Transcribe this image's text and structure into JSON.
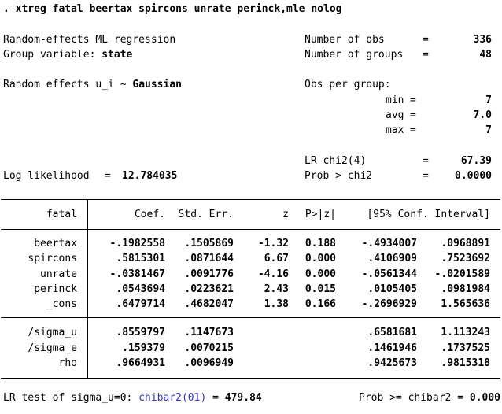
{
  "colors": {
    "link_blue": "#3434cd",
    "text": "#000000",
    "background": "#ffffff"
  },
  "command": {
    "line": ". xtreg fatal beertax spircons unrate perinck,mle nolog"
  },
  "header": {
    "left": {
      "model": "Random-effects ML regression",
      "group_label": "Group variable: ",
      "group_value": "state",
      "re_label": "Random effects u_i ~ ",
      "re_value": "Gaussian",
      "loglik_label": "Log likelihood",
      "loglik_eq": "=",
      "loglik_value": "12.784035"
    },
    "right": {
      "obs": {
        "label": "Number of obs",
        "eq": "=",
        "value": "336"
      },
      "groups": {
        "label": "Number of groups",
        "eq": "=",
        "value": "48"
      },
      "obs_per_group": {
        "label": "Obs per group:"
      },
      "min": {
        "label": "min",
        "eq": "=",
        "value": "7"
      },
      "avg": {
        "label": "avg",
        "eq": "=",
        "value": "7.0"
      },
      "max": {
        "label": "max",
        "eq": "=",
        "value": "7"
      },
      "lr_chi2": {
        "label": "LR chi2(4)",
        "eq": "=",
        "value": "67.39"
      },
      "prob_chi2": {
        "label": "Prob > chi2",
        "eq": "=",
        "value": "0.0000"
      }
    }
  },
  "table": {
    "depvar": "fatal",
    "col_headers": {
      "coef": "Coef.",
      "se": "Std. Err.",
      "z": "z",
      "p": "P>|z|",
      "ci": "[95% Conf. Interval]"
    },
    "coef_rows": [
      {
        "var": "beertax",
        "coef": "-.1982558",
        "se": ".1505869",
        "z": "-1.32",
        "p": "0.188",
        "lo": "-.4934007",
        "hi": ".0968891"
      },
      {
        "var": "spircons",
        "coef": ".5815301",
        "se": ".0871644",
        "z": "6.67",
        "p": "0.000",
        "lo": ".4106909",
        "hi": ".7523692"
      },
      {
        "var": "unrate",
        "coef": "-.0381467",
        "se": ".0091776",
        "z": "-4.16",
        "p": "0.000",
        "lo": "-.0561344",
        "hi": "-.0201589"
      },
      {
        "var": "perinck",
        "coef": ".0543694",
        "se": ".0223621",
        "z": "2.43",
        "p": "0.015",
        "lo": ".0105405",
        "hi": ".0981984"
      },
      {
        "var": "_cons",
        "coef": ".6479714",
        "se": ".4682047",
        "z": "1.38",
        "p": "0.166",
        "lo": "-.2696929",
        "hi": "1.565636"
      }
    ],
    "aux_rows": [
      {
        "var": "/sigma_u",
        "coef": ".8559797",
        "se": ".1147673",
        "lo": ".6581681",
        "hi": "1.113243"
      },
      {
        "var": "/sigma_e",
        "coef": ".159379",
        "se": ".0070215",
        "lo": ".1461946",
        "hi": ".1737525"
      },
      {
        "var": "rho",
        "coef": ".9664931",
        "se": ".0096949",
        "lo": ".9425673",
        "hi": ".9815318"
      }
    ]
  },
  "footer": {
    "left_label": "LR test of sigma_u=0: ",
    "link": "chibar2(01)",
    "eq": " = ",
    "value": "479.84",
    "right_label": "Prob >= chibar2 = ",
    "right_value": "0.000"
  }
}
